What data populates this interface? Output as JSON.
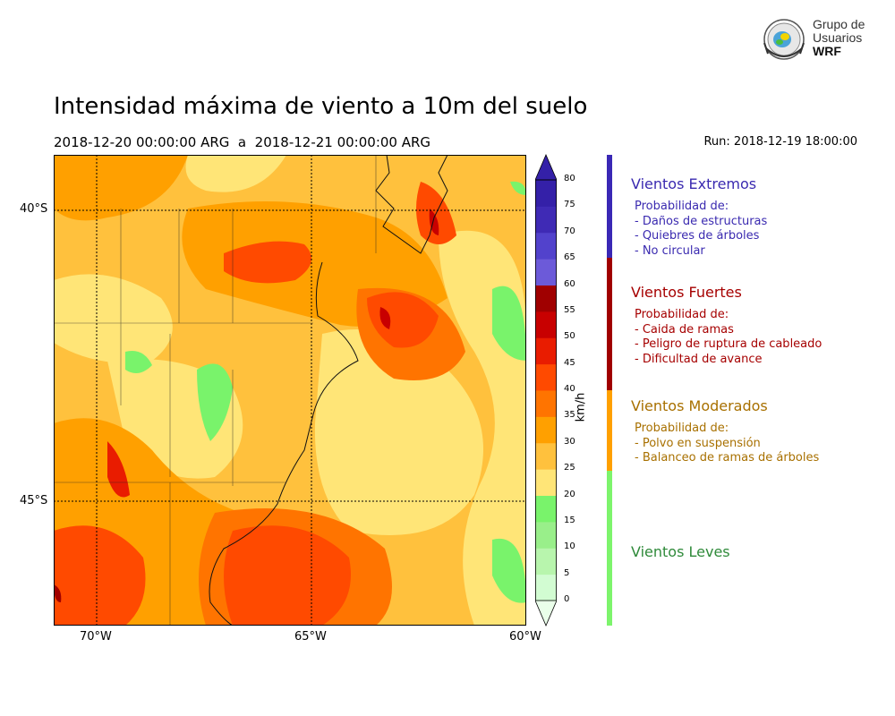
{
  "title": "Intensidad máxima de viento a 10m del suelo",
  "period": "2018-12-20 00:00:00 ARG  a  2018-12-21 00:00:00 ARG",
  "run": "Run: 2018-12-19 18:00:00",
  "logo": {
    "line1": "Grupo de",
    "line2": "Usuarios",
    "line3": "WRF"
  },
  "map": {
    "lat_labels": [
      "40°S",
      "45°S"
    ],
    "lon_labels": [
      "70°W",
      "65°W",
      "60°W"
    ]
  },
  "colorbar": {
    "unit": "km/h",
    "tick_labels": [
      "0",
      "5",
      "10",
      "15",
      "20",
      "25",
      "30",
      "35",
      "40",
      "45",
      "50",
      "55",
      "60",
      "65",
      "70",
      "75",
      "80"
    ],
    "colors": [
      "#eaffea",
      "#d2fcd2",
      "#b8f5ad",
      "#99ef8a",
      "#79f36b",
      "#ffe577",
      "#ffc13d",
      "#ffa000",
      "#ff7400",
      "#ff4a00",
      "#e91c00",
      "#c80000",
      "#a00000",
      "#6c5ad9",
      "#5242cc",
      "#3f2ab5",
      "#3420a8"
    ]
  },
  "categories": [
    {
      "title": "Vientos Extremos",
      "color": "#3a2ab0",
      "intro": "Probabilidad de:",
      "items": [
        "- Daños de estructuras",
        "- Quiebres de árboles",
        "- No circular"
      ]
    },
    {
      "title": "Vientos Fuertes",
      "color": "#a60000",
      "intro": "Probabilidad de:",
      "items": [
        "- Caida de ramas",
        "- Peligro de ruptura de cableado",
        "- Dificultad de avance"
      ]
    },
    {
      "title": "Vientos Moderados",
      "color": "#a87000",
      "intro": "Probabilidad de:",
      "items": [
        "- Polvo en suspensión",
        "- Balanceo de ramas de árboles"
      ]
    },
    {
      "title": "Vientos Leves",
      "color": "#2f8a3a"
    }
  ],
  "category_bar_colors": [
    "#3a28b5",
    "#a00000",
    "#ffa000",
    "#7df46c"
  ]
}
